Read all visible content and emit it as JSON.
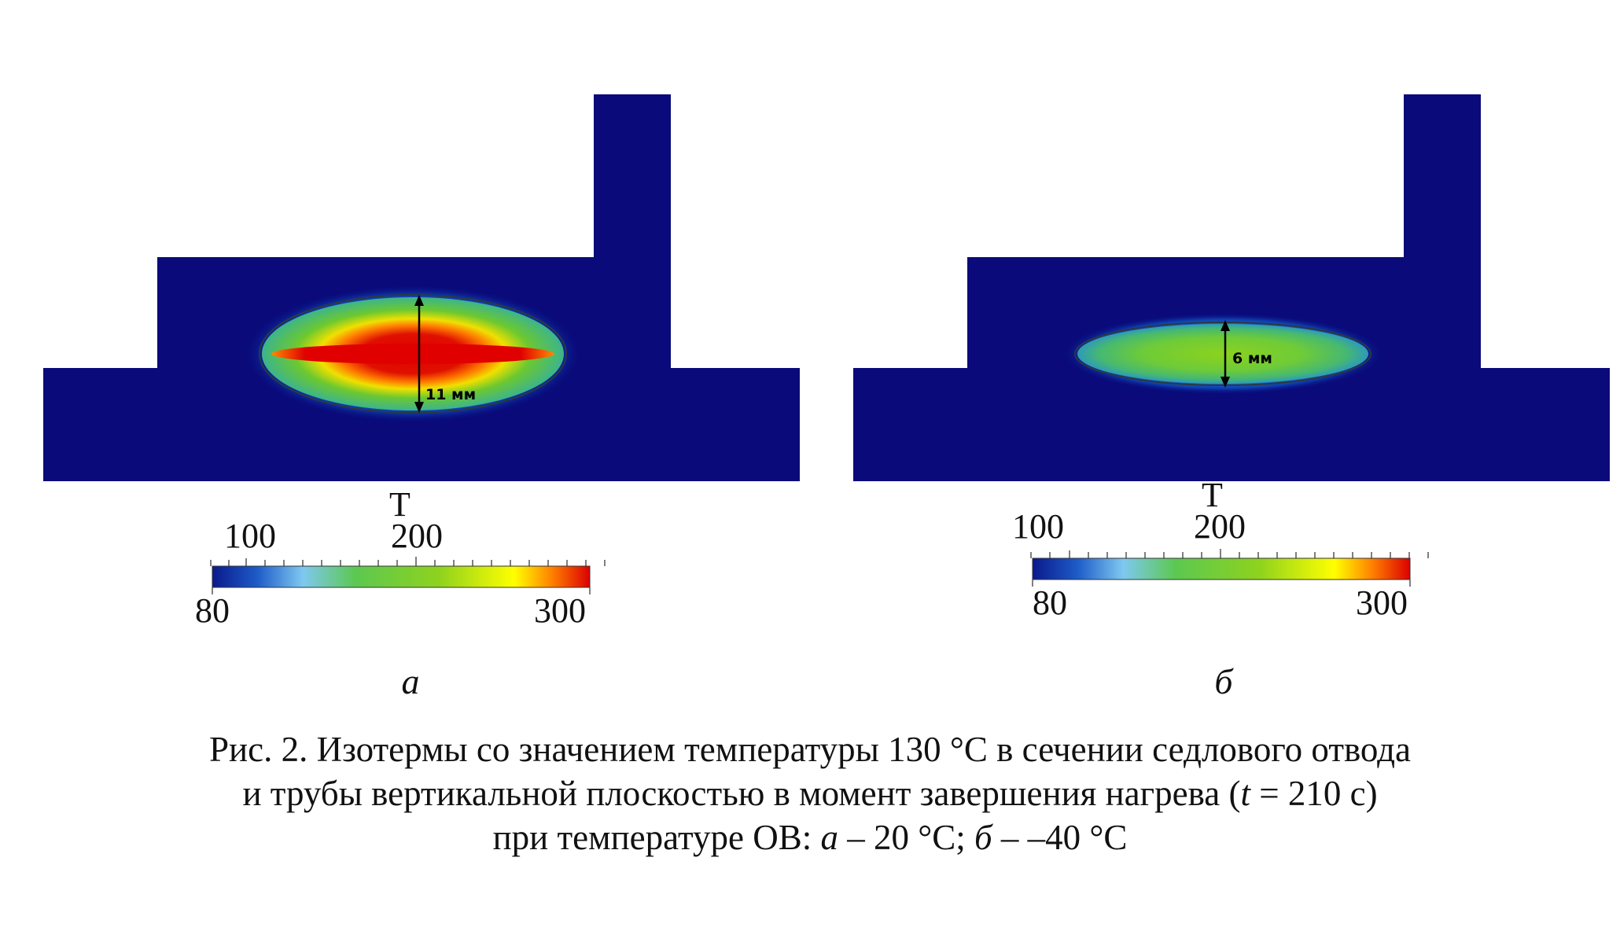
{
  "colors": {
    "background_field": "#0a0a7a",
    "isotherm_line": "#2b3a40",
    "scale_stops": [
      "#0a1a8c",
      "#1e5cc8",
      "#7ec8f0",
      "#5cc850",
      "#8ed21e",
      "#ffff00",
      "#ff8000",
      "#dc0000"
    ]
  },
  "panels": [
    {
      "id": "a",
      "sub_label": "а",
      "dimension_label": "11 мм",
      "isotherm_thickness_mm": 11,
      "colorbar": {
        "title": "T",
        "min": "80",
        "max": "300",
        "mid_low": "100",
        "mid_high": "200"
      }
    },
    {
      "id": "b",
      "sub_label": "б",
      "dimension_label": "6 мм",
      "isotherm_thickness_mm": 6,
      "colorbar": {
        "title": "T",
        "min": "80",
        "max": "300",
        "mid_low": "100",
        "mid_high": "200"
      }
    }
  ],
  "caption": {
    "line1": "Рис. 2. Изотермы со значением температуры 130 °С в сечении седлового отвода",
    "line2_pre": "и трубы вертикальной плоскостью в момент завершения нагрева (",
    "line2_var": "t",
    "line2_post": " = 210 с)",
    "line3_pre": "при температуре ОВ: ",
    "line3_a": "а",
    "line3_mid": " – 20 °С; ",
    "line3_b": "б",
    "line3_post": " – –40 °С"
  }
}
